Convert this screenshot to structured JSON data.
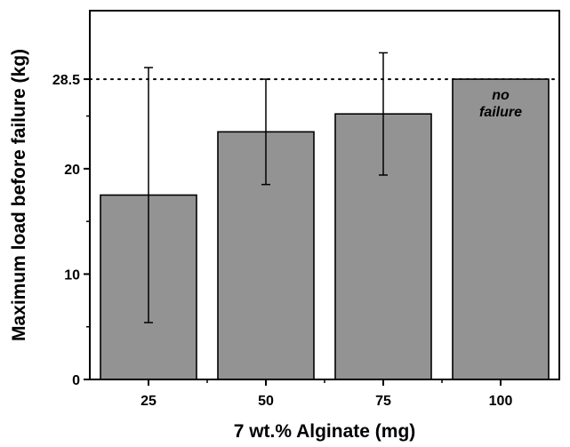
{
  "chart_data": {
    "type": "bar",
    "title": "",
    "xlabel": "7 wt.% Alginate (mg)",
    "ylabel": "Maximum load before failure (kg)",
    "categories": [
      "25",
      "50",
      "75",
      "100"
    ],
    "values": [
      17.5,
      23.5,
      25.2,
      28.5
    ],
    "error": [
      12.1,
      5.0,
      5.8,
      0
    ],
    "ylim": [
      0,
      35
    ],
    "yticks": [
      0,
      10,
      20,
      28.5
    ],
    "y_tick_labels": [
      "0",
      "10",
      "20",
      "28.5"
    ],
    "reference_line": {
      "y": 28.5,
      "style": "dotted"
    },
    "annotation": {
      "category": "100",
      "lines": [
        "no",
        "failure"
      ]
    },
    "grid": false,
    "legend": "none",
    "colors": {
      "bar_fill": "#939393",
      "bar_stroke": "#000000",
      "axis": "#000000"
    }
  }
}
